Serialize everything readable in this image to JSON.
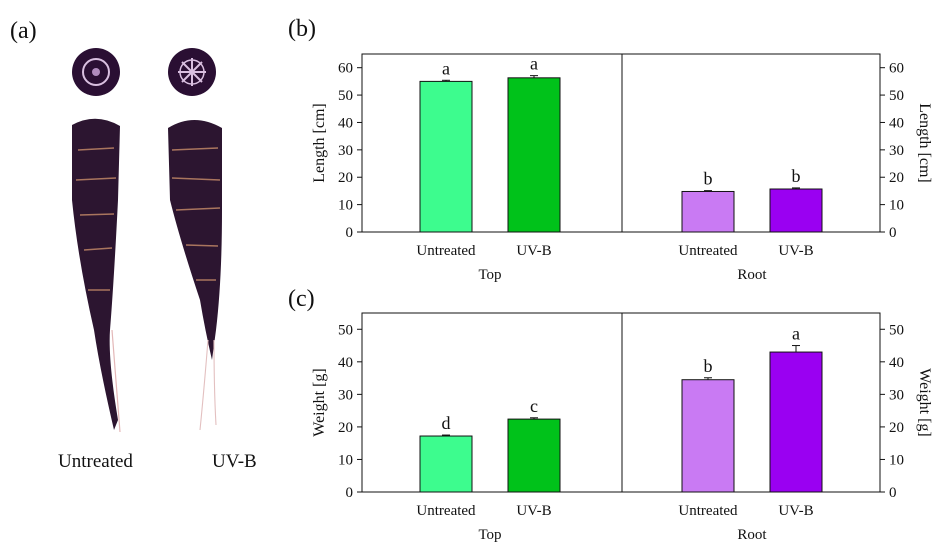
{
  "panel_a": {
    "letter": "(a)",
    "labels": [
      "Untreated",
      "UV-B"
    ]
  },
  "chart_data": [
    {
      "panel": "(b)",
      "type": "bar",
      "ylabel_left": "Length [cm]",
      "ylabel_right": "Length [cm]",
      "ylim": [
        0,
        65
      ],
      "yticks": [
        0,
        10,
        20,
        30,
        40,
        50,
        60
      ],
      "grid": false,
      "groups": [
        {
          "name": "Top",
          "categories": [
            "Untreated",
            "UV-B"
          ],
          "values": [
            55,
            56.3
          ],
          "errors": [
            0.4,
            0.8
          ],
          "letters": [
            "a",
            "a"
          ],
          "colors": [
            "#3dfc8e",
            "#00c21a"
          ]
        },
        {
          "name": "Root",
          "categories": [
            "Untreated",
            "UV-B"
          ],
          "values": [
            14.8,
            15.7
          ],
          "errors": [
            0.3,
            0.4
          ],
          "letters": [
            "b",
            "b"
          ],
          "colors": [
            "#c97af3",
            "#9a00f2"
          ]
        }
      ]
    },
    {
      "panel": "(c)",
      "type": "bar",
      "ylabel_left": "Weight [g]",
      "ylabel_right": "Weight [g]",
      "ylim": [
        0,
        55
      ],
      "yticks": [
        0,
        10,
        20,
        30,
        40,
        50
      ],
      "grid": false,
      "groups": [
        {
          "name": "Top",
          "categories": [
            "Untreated",
            "UV-B"
          ],
          "values": [
            17.2,
            22.4
          ],
          "errors": [
            0.3,
            0.4
          ],
          "letters": [
            "d",
            "c"
          ],
          "colors": [
            "#3dfc8e",
            "#00c21a"
          ]
        },
        {
          "name": "Root",
          "categories": [
            "Untreated",
            "UV-B"
          ],
          "values": [
            34.5,
            43
          ],
          "errors": [
            0.6,
            2
          ],
          "letters": [
            "b",
            "a"
          ],
          "colors": [
            "#c97af3",
            "#9a00f2"
          ]
        }
      ]
    }
  ]
}
